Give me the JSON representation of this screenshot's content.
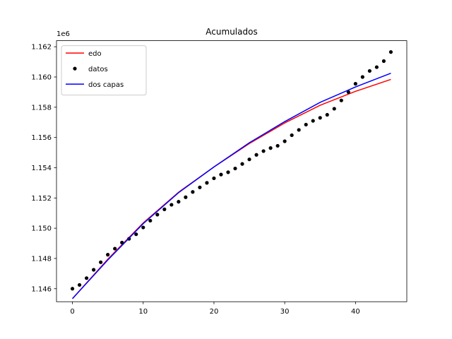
{
  "chart_data": {
    "type": "line",
    "title": "Acumulados",
    "xlabel": "",
    "ylabel": "",
    "y_offset_label": "1e6",
    "xlim": [
      -2.25,
      47.25
    ],
    "ylim": [
      1145140,
      1162400
    ],
    "x_ticks": [
      0,
      10,
      20,
      30,
      40
    ],
    "x_tick_labels": [
      "0",
      "10",
      "20",
      "30",
      "40"
    ],
    "y_ticks": [
      1146000,
      1148000,
      1150000,
      1152000,
      1154000,
      1156000,
      1158000,
      1160000,
      1162000
    ],
    "y_tick_labels": [
      "1.146",
      "1.148",
      "1.150",
      "1.152",
      "1.154",
      "1.156",
      "1.158",
      "1.160",
      "1.162"
    ],
    "grid": false,
    "legend_position": "top-left",
    "series": [
      {
        "name": "edo",
        "style": "line",
        "color": "#ff0000",
        "x": [
          0,
          5,
          10,
          15,
          20,
          25,
          30,
          35,
          40,
          45
        ],
        "y": [
          1145340,
          1147950,
          1150350,
          1152380,
          1154050,
          1155600,
          1156960,
          1158130,
          1159050,
          1159840
        ]
      },
      {
        "name": "datos",
        "style": "points",
        "color": "#000000",
        "x": [
          0,
          1,
          2,
          3,
          4,
          5,
          6,
          7,
          8,
          9,
          10,
          11,
          12,
          13,
          14,
          15,
          16,
          17,
          18,
          19,
          20,
          21,
          22,
          23,
          24,
          25,
          26,
          27,
          28,
          29,
          30,
          31,
          32,
          33,
          34,
          35,
          36,
          37,
          38,
          39,
          40,
          41,
          42,
          43,
          44,
          45
        ],
        "y": [
          1146000,
          1146250,
          1146700,
          1147250,
          1147750,
          1148250,
          1148650,
          1149050,
          1149300,
          1149600,
          1150050,
          1150500,
          1150900,
          1151250,
          1151550,
          1151750,
          1152050,
          1152400,
          1152700,
          1153000,
          1153300,
          1153550,
          1153700,
          1153950,
          1154250,
          1154550,
          1154850,
          1155100,
          1155300,
          1155450,
          1155750,
          1156150,
          1156500,
          1156850,
          1157100,
          1157300,
          1157500,
          1157900,
          1158450,
          1159000,
          1159550,
          1160000,
          1160400,
          1160650,
          1161050,
          1161650
        ]
      },
      {
        "name": "dos capas",
        "style": "line",
        "color": "#0000ff",
        "x": [
          0,
          5,
          10,
          15,
          20,
          25,
          30,
          35,
          40,
          45
        ],
        "y": [
          1145340,
          1147900,
          1150300,
          1152350,
          1154050,
          1155650,
          1157050,
          1158320,
          1159340,
          1160250
        ]
      }
    ]
  }
}
